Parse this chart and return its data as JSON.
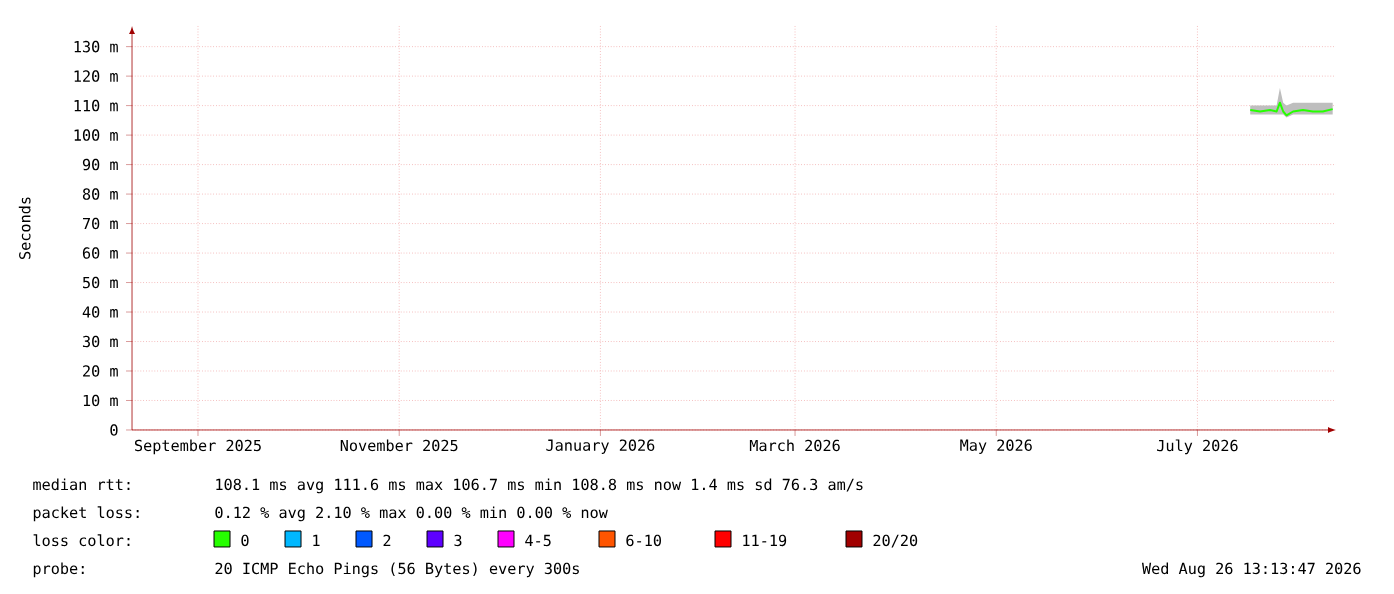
{
  "chart_data": {
    "type": "line",
    "ylabel": "Seconds",
    "legend_title": "loss color:",
    "x": [
      "2026-07-31",
      "2026-08-03",
      "2026-08-06",
      "2026-08-08",
      "2026-08-09",
      "2026-08-10",
      "2026-08-11",
      "2026-08-13",
      "2026-08-16",
      "2026-08-19",
      "2026-08-22",
      "2026-08-25"
    ],
    "series": [
      {
        "name": "0",
        "color": "#26ff00",
        "values": [
          108.5,
          108,
          108.5,
          108,
          111,
          108,
          106.7,
          108,
          108.5,
          108,
          108,
          108.8
        ],
        "lower": [
          107,
          107,
          107,
          107,
          107,
          107,
          106,
          107,
          107,
          107,
          107,
          107
        ],
        "upper": [
          110,
          110,
          110,
          110,
          116,
          111,
          110,
          111,
          111,
          111,
          111,
          111
        ]
      },
      {
        "name": "1",
        "color": "#00b8ff",
        "values": [
          null,
          null,
          null,
          null,
          null,
          null,
          null,
          null,
          null,
          null,
          null,
          null
        ]
      },
      {
        "name": "2",
        "color": "#0059ff",
        "values": [
          null,
          null,
          null,
          null,
          null,
          null,
          null,
          null,
          null,
          null,
          null,
          null
        ]
      },
      {
        "name": "3",
        "color": "#5e00ff",
        "values": [
          null,
          null,
          null,
          null,
          null,
          null,
          null,
          null,
          null,
          null,
          null,
          null
        ]
      },
      {
        "name": "4-5",
        "color": "#ff00ff",
        "values": [
          null,
          null,
          null,
          null,
          null,
          null,
          null,
          null,
          null,
          null,
          null,
          null
        ]
      },
      {
        "name": "6-10",
        "color": "#ff5500",
        "values": [
          null,
          null,
          null,
          null,
          null,
          null,
          null,
          null,
          null,
          null,
          null,
          null
        ]
      },
      {
        "name": "11-19",
        "color": "#ff0000",
        "values": [
          null,
          null,
          null,
          null,
          null,
          null,
          null,
          null,
          null,
          null,
          null,
          null
        ]
      },
      {
        "name": "20/20",
        "color": "#a10000",
        "values": [
          null,
          null,
          null,
          null,
          null,
          null,
          null,
          null,
          null,
          null,
          null,
          null
        ]
      }
    ],
    "xlim": [
      "2025-08-26",
      "2026-08-26"
    ],
    "xticks": [
      {
        "value": "2025-09-15",
        "label": "September 2025"
      },
      {
        "value": "2025-11-15",
        "label": "November 2025"
      },
      {
        "value": "2026-01-15",
        "label": "January 2026"
      },
      {
        "value": "2026-03-15",
        "label": "March 2026"
      },
      {
        "value": "2026-05-15",
        "label": "May 2026"
      },
      {
        "value": "2026-07-15",
        "label": "July 2026"
      }
    ],
    "ylim": [
      0,
      137
    ],
    "yticks": [
      0,
      {
        "value": 10,
        "label": "10 m"
      },
      {
        "value": 20,
        "label": "20 m"
      },
      {
        "value": 30,
        "label": "30 m"
      },
      {
        "value": 40,
        "label": "40 m"
      },
      {
        "value": 50,
        "label": "50 m"
      },
      {
        "value": 60,
        "label": "60 m"
      },
      {
        "value": 70,
        "label": "70 m"
      },
      {
        "value": 80,
        "label": "80 m"
      },
      {
        "value": 90,
        "label": "90 m"
      },
      {
        "value": 100,
        "label": "100 m"
      },
      {
        "value": 110,
        "label": "110 m"
      },
      {
        "value": 120,
        "label": "120 m"
      },
      {
        "value": 130,
        "label": "130 m"
      }
    ],
    "grid": true,
    "legend": "bottom left",
    "marker": "none",
    "line_style": "solid",
    "annotations": [
      "median rtt:",
      "108.1 ms avg  111.6 ms max  106.7 ms min  108.8 ms now  1.4 ms sd  76.3   am/s",
      "packet loss:",
      "0.12 % avg  2.10 % max  0.00 % min  0.00 % now",
      "probe:",
      "20 ICMP Echo Pings (56 Bytes) every 300s",
      "Wed Aug 26 13:13:47 2026"
    ]
  }
}
